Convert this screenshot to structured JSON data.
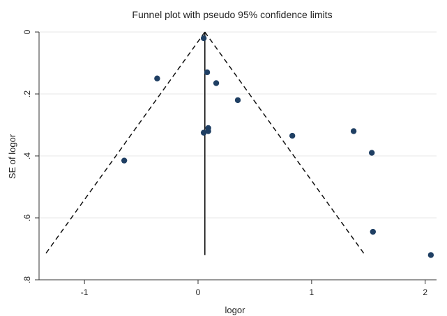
{
  "chart_data": {
    "type": "scatter",
    "title": "Funnel plot with pseudo 95% confidence limits",
    "xlabel": "logor",
    "ylabel": "SE of logor",
    "xlim": [
      -1.4,
      2.1
    ],
    "ylim": [
      0.8,
      0
    ],
    "y_axis_reversed": true,
    "grid": true,
    "x_ticks": [
      {
        "value": -1,
        "label": "-1"
      },
      {
        "value": 0,
        "label": "0"
      },
      {
        "value": 1,
        "label": "1"
      },
      {
        "value": 2,
        "label": "2"
      }
    ],
    "y_ticks": [
      {
        "value": 0,
        "label": "0"
      },
      {
        "value": 0.2,
        "label": ".2"
      },
      {
        "value": 0.4,
        "label": ".4"
      },
      {
        "value": 0.6,
        "label": ".6"
      },
      {
        "value": 0.8,
        "label": ".8"
      }
    ],
    "pooled_estimate": 0.06,
    "reference_line": {
      "x": 0.06,
      "y_from": 0,
      "y_to": 0.72
    },
    "funnel_limits": {
      "left": [
        {
          "x": 0.06,
          "y": 0
        },
        {
          "x": -1.35,
          "y": 0.72
        }
      ],
      "right": [
        {
          "x": 0.06,
          "y": 0
        },
        {
          "x": 1.47,
          "y": 0.72
        }
      ]
    },
    "points": [
      {
        "x": 0.05,
        "y": 0.02
      },
      {
        "x": -0.36,
        "y": 0.15
      },
      {
        "x": 0.08,
        "y": 0.13
      },
      {
        "x": 0.16,
        "y": 0.165
      },
      {
        "x": 0.35,
        "y": 0.22
      },
      {
        "x": 0.09,
        "y": 0.31
      },
      {
        "x": 0.09,
        "y": 0.32
      },
      {
        "x": 0.05,
        "y": 0.325
      },
      {
        "x": 0.83,
        "y": 0.335
      },
      {
        "x": 1.37,
        "y": 0.32
      },
      {
        "x": 1.53,
        "y": 0.39
      },
      {
        "x": -0.65,
        "y": 0.415
      },
      {
        "x": 1.54,
        "y": 0.645
      },
      {
        "x": 2.05,
        "y": 0.72
      }
    ]
  },
  "colors": {
    "marker": "#1f3f63",
    "line": "#111111",
    "axis": "#333333",
    "grid": "#e7e7e7",
    "text": "#222222"
  }
}
